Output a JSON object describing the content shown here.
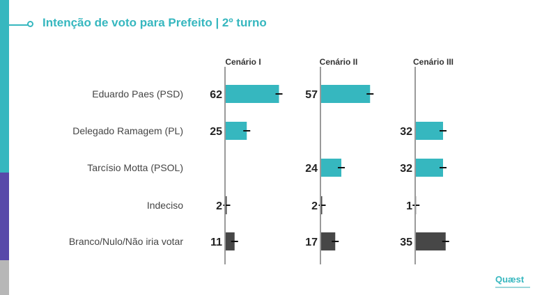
{
  "header": {
    "title": "Intenção de voto para Prefeito | 2º turno"
  },
  "colors": {
    "accent": "#36b7bf",
    "purple": "#5849a9",
    "gray_stripe": "#b7b7b7",
    "candidate_bar": "#36b7bf",
    "other_bar": "#474747",
    "axis_line": "#9a9a9a"
  },
  "logo": {
    "text": "Quæst"
  },
  "chart_data": {
    "type": "bar",
    "orientation": "horizontal",
    "categories": [
      "Eduardo Paes (PSD)",
      "Delegado Ramagem (PL)",
      "Tarcísio Motta (PSOL)",
      "Indeciso",
      "Branco/Nulo/Não iria votar"
    ],
    "series": [
      {
        "name": "Cenário I",
        "values": [
          62,
          25,
          null,
          2,
          11
        ]
      },
      {
        "name": "Cenário II",
        "values": [
          57,
          null,
          24,
          2,
          17
        ]
      },
      {
        "name": "Cenário III",
        "values": [
          null,
          32,
          32,
          1,
          35
        ]
      }
    ],
    "error_margin_shown": true,
    "gray_categories": [
      "Indeciso",
      "Branco/Nulo/Não iria votar"
    ],
    "xlim": [
      0,
      100
    ]
  }
}
